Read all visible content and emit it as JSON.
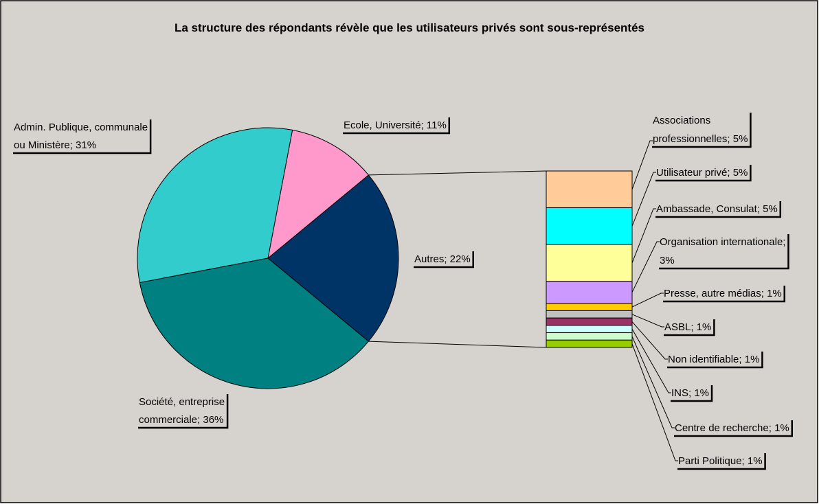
{
  "chart_data": {
    "type": "pie-of-bar",
    "title": "La structure des répondants révèle que les utilisateurs privés sont sous-représentés",
    "values": [
      22,
      11,
      31,
      36
    ],
    "value_labels": [
      "Autres; 22%",
      "Ecole, Université; 11%",
      "Admin. Publique, communale\nou Ministère; 31%",
      "Société, entreprise\ncommerciale; 36%"
    ],
    "colors": [
      "#003366",
      "#ff99cc",
      "#33cccc",
      "#008080"
    ],
    "breakdown": {
      "values": [
        5,
        5,
        5,
        3,
        1,
        1,
        1,
        1,
        1,
        1
      ],
      "value_labels": [
        "Associations\nprofessionnelles; 5%",
        "Utilisateur privé; 5%",
        "Ambassade, Consulat; 5%",
        "Organisation internationale;\n3%",
        "Presse, autre médias; 1%",
        "ASBL; 1%",
        "Non identifiable; 1%",
        "INS; 1%",
        "Centre de recherche; 1%",
        "Parti Politique; 1%"
      ],
      "colors": [
        "#ffcc99",
        "#00ffff",
        "#ffff99",
        "#cc99ff",
        "#ffcc00",
        "#c0c0c0",
        "#993366",
        "#ccffff",
        "#ccffcc",
        "#99cc00"
      ]
    }
  }
}
